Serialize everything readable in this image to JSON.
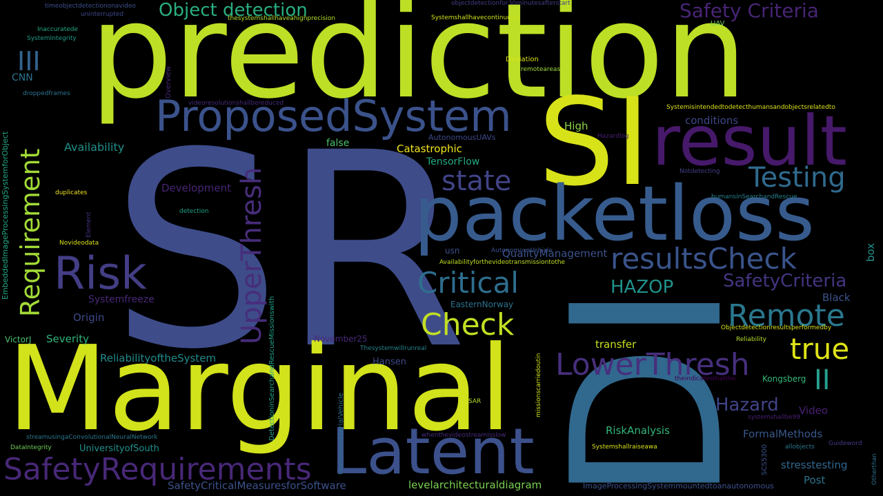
{
  "palette": {
    "background": "#000000",
    "yellow": "#d2e21b",
    "lime": "#b5de2b",
    "teal": "#25858e",
    "blue": "#3e4989",
    "purple": "#481f70",
    "green": "#35b779"
  },
  "words": [
    {
      "text": "SR",
      "color": "#3e4c8a"
    },
    {
      "text": "prediction",
      "color": "#bddf26"
    },
    {
      "text": "DI",
      "color": "#31688e"
    },
    {
      "text": "SI",
      "color": "#d8e219"
    },
    {
      "text": "Marginal",
      "color": "#d2e21b"
    },
    {
      "text": "packetloss",
      "color": "#375b8d"
    },
    {
      "text": "result",
      "color": "#46196a"
    },
    {
      "text": "ProposedSystem",
      "color": "#3b528b"
    },
    {
      "text": "Latent",
      "color": "#3c518b"
    },
    {
      "text": "Risk",
      "color": "#433e85"
    },
    {
      "text": "SafetyRequirements",
      "color": "#482878"
    },
    {
      "text": "Requirement",
      "color": "#a2da37"
    },
    {
      "text": "UpperThresh",
      "color": "#472d7b"
    },
    {
      "text": "Testing",
      "color": "#306a8e"
    },
    {
      "text": "resultsCheck",
      "color": "#3a548c"
    },
    {
      "text": "Critical",
      "color": "#2e6e8e"
    },
    {
      "text": "Check",
      "color": "#c2df23"
    },
    {
      "text": "Remote",
      "color": "#2a788e"
    },
    {
      "text": "LowerThresh",
      "color": "#472f7d"
    },
    {
      "text": "true",
      "color": "#dfe318"
    },
    {
      "text": "state",
      "color": "#414487"
    },
    {
      "text": "Object detection",
      "color": "#29af7f"
    },
    {
      "text": "Safety Criteria",
      "color": "#482475"
    },
    {
      "text": "III",
      "color": "#33638d"
    },
    {
      "text": "II",
      "color": "#25a18e"
    },
    {
      "text": "SafetyCriteria",
      "color": "#453581"
    },
    {
      "text": "HAZOP",
      "color": "#20928c"
    },
    {
      "text": "Hazard",
      "color": "#414487"
    },
    {
      "text": "Availability",
      "color": "#21918c"
    },
    {
      "text": "Development",
      "color": "#482576"
    },
    {
      "text": "TensorFlow",
      "color": "#25ab82"
    },
    {
      "text": "Catastrophic",
      "color": "#f1e51d"
    },
    {
      "text": "conditions",
      "color": "#3f4889"
    },
    {
      "text": "High",
      "color": "#8ed645"
    },
    {
      "text": "false",
      "color": "#4ac16d"
    },
    {
      "text": "QualityManagement",
      "color": "#3b528b"
    },
    {
      "text": "Systemfreeze",
      "color": "#482878"
    },
    {
      "text": "Origin",
      "color": "#3e4a89"
    },
    {
      "text": "Severity",
      "color": "#2fb47c"
    },
    {
      "text": "ReliabilityoftheSystem",
      "color": "#228c8d"
    },
    {
      "text": "Hansen",
      "color": "#3e4a89"
    },
    {
      "text": "transfer",
      "color": "#c8e020"
    },
    {
      "text": "RiskAnalysis",
      "color": "#32b67a"
    },
    {
      "text": "FormalMethods",
      "color": "#38588c"
    },
    {
      "text": "Video",
      "color": "#482173"
    },
    {
      "text": "stresstesting",
      "color": "#31688e"
    },
    {
      "text": "Post",
      "color": "#2c728e"
    },
    {
      "text": "levelarchitecturaldiagram",
      "color": "#7ad151"
    },
    {
      "text": "SafetyCriticalMeasuresforSoftware",
      "color": "#3b528b"
    },
    {
      "text": "UniversityofSouth",
      "color": "#21918c"
    },
    {
      "text": "CNN",
      "color": "#2c728e"
    },
    {
      "text": "Black",
      "color": "#3b528b"
    },
    {
      "text": "EasternNorway",
      "color": "#2c728e"
    },
    {
      "text": "Kongsberg",
      "color": "#35b779"
    },
    {
      "text": "November25",
      "color": "#482878"
    },
    {
      "text": "VictorJ",
      "color": "#4ac16d"
    },
    {
      "text": "usn",
      "color": "#3b528b"
    },
    {
      "text": "box",
      "color": "#21918c"
    },
    {
      "text": "timeobjectdetectiononavideo",
      "color": "#3b528b"
    },
    {
      "text": "uninterrupted",
      "color": "#3e4989"
    },
    {
      "text": "thesystemshallhaveahighprecision",
      "color": "#b5de2b"
    },
    {
      "text": "objectdetectionfor30minutesafterstart",
      "color": "#433e85"
    },
    {
      "text": "Systemshallhavecontinuous",
      "color": "#d2e21b"
    },
    {
      "text": "UAV",
      "color": "#6ece58"
    },
    {
      "text": "Inaccuratede",
      "color": "#22a884"
    },
    {
      "text": "SystemIntegrity",
      "color": "#1f9e89"
    },
    {
      "text": "droppedframes",
      "color": "#2c728e"
    },
    {
      "text": "videoresolutionshallbereduced",
      "color": "#472a7a"
    },
    {
      "text": "Deviation",
      "color": "#dde318"
    },
    {
      "text": "remoteareas",
      "color": "#a0da39"
    },
    {
      "text": "Systemisintendedtodetecthumansandobjectsrelatedto",
      "color": "#dde318"
    },
    {
      "text": "AutonomousUAVs",
      "color": "#3e4a89"
    },
    {
      "text": "Hazardlog",
      "color": "#482173"
    },
    {
      "text": "Notdetecting",
      "color": "#424086"
    },
    {
      "text": "humansinSearchandRescue",
      "color": "#26828e"
    },
    {
      "text": "duplicates",
      "color": "#f1e51d"
    },
    {
      "text": "detection",
      "color": "#20a386"
    },
    {
      "text": "Novideodata",
      "color": "#dde318"
    },
    {
      "text": "AutonomousVehicle",
      "color": "#3b528b"
    },
    {
      "text": "Availabilityforthevideotransmissiontothe",
      "color": "#c2df23"
    },
    {
      "text": "Objectdetectionresultsperformedby",
      "color": "#d8e219"
    },
    {
      "text": "Reliability",
      "color": "#b5de2b"
    },
    {
      "text": "Thesystemwillrunreal",
      "color": "#25848e"
    },
    {
      "text": "theindicatesthatthe",
      "color": "#440154"
    },
    {
      "text": "systemshallbe99",
      "color": "#482173"
    },
    {
      "text": "SAR",
      "color": "#b5de2b"
    },
    {
      "text": "streamusingaConvolutionalNeuralNetwork",
      "color": "#2a788e"
    },
    {
      "text": "DataIntegrity",
      "color": "#6ece58"
    },
    {
      "text": "whenthevideostreamisslow",
      "color": "#472d7b"
    },
    {
      "text": "Systemshallraiseawa",
      "color": "#d8e219"
    },
    {
      "text": "allobjects",
      "color": "#2a788e"
    },
    {
      "text": "Guideword",
      "color": "#443983"
    },
    {
      "text": "ImageProcessingSystemmountedtoanautonomous",
      "color": "#3b528b"
    },
    {
      "text": "Overview",
      "color": "#482878"
    },
    {
      "text": "EmbeddedImageProcessingSystemforObject",
      "color": "#22a884"
    },
    {
      "text": "Element",
      "color": "#46327e"
    },
    {
      "text": "DetectioninSearchandRescueMissionswith",
      "color": "#1fa187"
    },
    {
      "text": "UnmannedAerialVehicle",
      "color": "#2c728e"
    },
    {
      "text": "missionscarriedoutin",
      "color": "#d2e21b"
    },
    {
      "text": "SCS5300",
      "color": "#3b528b"
    },
    {
      "text": "Otherthan",
      "color": "#2c728e"
    }
  ]
}
